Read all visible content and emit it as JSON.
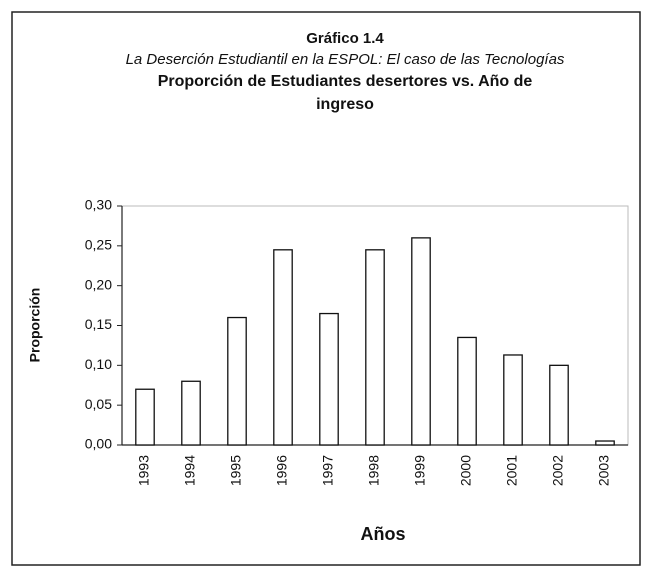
{
  "chart_data": {
    "type": "bar",
    "title": "Gráfico 1.4",
    "subtitle": "La Deserción Estudiantil en la ESPOL: El caso de las Tecnologías",
    "chart_heading": "Proporción de Estudiantes desertores vs. Año de ingreso",
    "x_label": "Años",
    "y_label": "Proporción",
    "categories": [
      "1993",
      "1994",
      "1995",
      "1996",
      "1997",
      "1998",
      "1999",
      "2000",
      "2001",
      "2002",
      "2003"
    ],
    "values": [
      0.07,
      0.08,
      0.16,
      0.245,
      0.165,
      0.245,
      0.26,
      0.135,
      0.113,
      0.1,
      0.005
    ],
    "color": "#ffffff",
    "ylim": [
      0,
      0.3
    ],
    "yticks": [
      {
        "value": 0,
        "label": "0,00"
      },
      {
        "value": 0.05,
        "label": "0,05"
      },
      {
        "value": 0.1,
        "label": "0,10"
      },
      {
        "value": 0.15,
        "label": "0,15"
      },
      {
        "value": 0.2,
        "label": "0,20"
      },
      {
        "value": 0.25,
        "label": "0,25"
      },
      {
        "value": 0.3,
        "label": "0,30"
      }
    ],
    "grid": false
  }
}
